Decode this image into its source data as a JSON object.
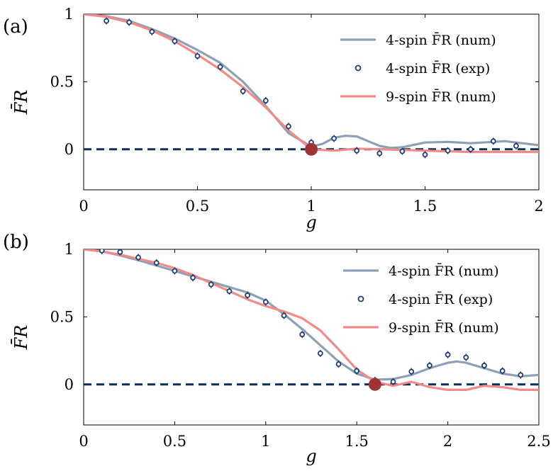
{
  "chart_data": [
    {
      "type": "line",
      "panel_label": "(a)",
      "xlabel": "g",
      "ylabel": "F̄R",
      "xlim": [
        0,
        2
      ],
      "ylim": [
        -0.3,
        1
      ],
      "xticks": [
        "0",
        "0.5",
        "1",
        "1.5",
        "2"
      ],
      "yticks": [
        "0",
        "0.5",
        "1"
      ],
      "legend_position": "top-right",
      "colors": {
        "num4": "#8da0b6",
        "exp4": "#1f3f73",
        "num9": "#f28a87",
        "ref": "#0e2f57",
        "marker": "#9e3434"
      },
      "series": [
        {
          "name": "4-spin F̄R (num)",
          "style": "line",
          "x": [
            0,
            0.1,
            0.2,
            0.3,
            0.4,
            0.5,
            0.6,
            0.7,
            0.8,
            0.9,
            1.0,
            1.05,
            1.1,
            1.15,
            1.2,
            1.25,
            1.3,
            1.35,
            1.4,
            1.5,
            1.6,
            1.7,
            1.8,
            1.85,
            1.9,
            2.0
          ],
          "y": [
            1,
            0.985,
            0.95,
            0.89,
            0.82,
            0.735,
            0.64,
            0.5,
            0.32,
            0.12,
            0.02,
            0.04,
            0.085,
            0.1,
            0.095,
            0.06,
            0.025,
            0.01,
            0.015,
            0.05,
            0.055,
            0.045,
            0.055,
            0.06,
            0.05,
            0.03
          ]
        },
        {
          "name": "4-spin F̄R (exp)",
          "style": "marker",
          "x": [
            0.1,
            0.2,
            0.3,
            0.4,
            0.5,
            0.6,
            0.7,
            0.8,
            0.9,
            1.0,
            1.1,
            1.2,
            1.3,
            1.4,
            1.5,
            1.6,
            1.7,
            1.8,
            1.9
          ],
          "y": [
            0.95,
            0.94,
            0.87,
            0.8,
            0.69,
            0.61,
            0.43,
            0.36,
            0.17,
            0.05,
            0.08,
            -0.01,
            -0.03,
            -0.015,
            -0.04,
            -0.01,
            0.0,
            0.06,
            0.025
          ]
        },
        {
          "name": "9-spin F̄R (num)",
          "style": "line",
          "x": [
            0,
            0.1,
            0.2,
            0.3,
            0.4,
            0.5,
            0.6,
            0.7,
            0.8,
            0.9,
            1.0,
            1.1,
            1.2,
            1.3,
            1.4,
            1.5,
            1.6,
            1.7,
            1.8,
            1.9,
            2.0
          ],
          "y": [
            1,
            0.98,
            0.94,
            0.88,
            0.8,
            0.7,
            0.59,
            0.46,
            0.31,
            0.14,
            0.0,
            -0.01,
            0.005,
            0.0,
            -0.005,
            -0.01,
            -0.015,
            -0.02,
            -0.02,
            -0.02,
            -0.02
          ]
        }
      ],
      "reference_y": 0,
      "highlight_point": {
        "x": 1.0,
        "y": 0
      }
    },
    {
      "type": "line",
      "panel_label": "(b)",
      "xlabel": "g",
      "ylabel": "F̄R",
      "xlim": [
        0,
        2.5
      ],
      "ylim": [
        -0.3,
        1
      ],
      "xticks": [
        "0",
        "0.5",
        "1",
        "1.5",
        "2",
        "2.5"
      ],
      "yticks": [
        "0",
        "0.5",
        "1"
      ],
      "legend_position": "top-right",
      "colors": {
        "num4": "#8da0b6",
        "exp4": "#1f3f73",
        "num9": "#f28a87",
        "ref": "#0e2f57",
        "marker": "#9e3434"
      },
      "series": [
        {
          "name": "4-spin F̄R (num)",
          "style": "line",
          "x": [
            0,
            0.1,
            0.2,
            0.3,
            0.4,
            0.5,
            0.6,
            0.7,
            0.8,
            0.9,
            1.0,
            1.1,
            1.2,
            1.3,
            1.4,
            1.5,
            1.6,
            1.7,
            1.8,
            1.9,
            2.0,
            2.05,
            2.1,
            2.2,
            2.3,
            2.4,
            2.5
          ],
          "y": [
            1,
            0.985,
            0.955,
            0.92,
            0.88,
            0.84,
            0.8,
            0.76,
            0.72,
            0.68,
            0.62,
            0.52,
            0.41,
            0.29,
            0.17,
            0.08,
            0.035,
            0.04,
            0.07,
            0.12,
            0.16,
            0.17,
            0.16,
            0.12,
            0.08,
            0.06,
            0.07
          ]
        },
        {
          "name": "4-spin F̄R (exp)",
          "style": "marker",
          "x": [
            0.1,
            0.2,
            0.3,
            0.4,
            0.5,
            0.6,
            0.7,
            0.8,
            0.9,
            1.0,
            1.1,
            1.2,
            1.3,
            1.4,
            1.5,
            1.6,
            1.7,
            1.8,
            1.9,
            2.0,
            2.1,
            2.2,
            2.3,
            2.4
          ],
          "y": [
            0.99,
            0.98,
            0.94,
            0.9,
            0.84,
            0.79,
            0.74,
            0.69,
            0.66,
            0.61,
            0.51,
            0.37,
            0.23,
            0.15,
            0.1,
            0.03,
            0.02,
            0.095,
            0.14,
            0.22,
            0.2,
            0.14,
            0.1,
            0.07
          ]
        },
        {
          "name": "9-spin F̄R (num)",
          "style": "line",
          "x": [
            0,
            0.1,
            0.2,
            0.3,
            0.4,
            0.5,
            0.6,
            0.7,
            0.8,
            0.9,
            1.0,
            1.1,
            1.2,
            1.3,
            1.4,
            1.5,
            1.6,
            1.7,
            1.8,
            1.9,
            2.0,
            2.1,
            2.2,
            2.3,
            2.4,
            2.5
          ],
          "y": [
            1,
            0.985,
            0.96,
            0.93,
            0.9,
            0.86,
            0.81,
            0.75,
            0.69,
            0.63,
            0.58,
            0.54,
            0.49,
            0.4,
            0.26,
            0.11,
            0.02,
            -0.01,
            0.02,
            -0.02,
            -0.04,
            -0.04,
            -0.01,
            -0.02,
            -0.04,
            -0.04
          ]
        }
      ],
      "reference_y": 0,
      "highlight_point": {
        "x": 1.6,
        "y": 0
      }
    }
  ]
}
